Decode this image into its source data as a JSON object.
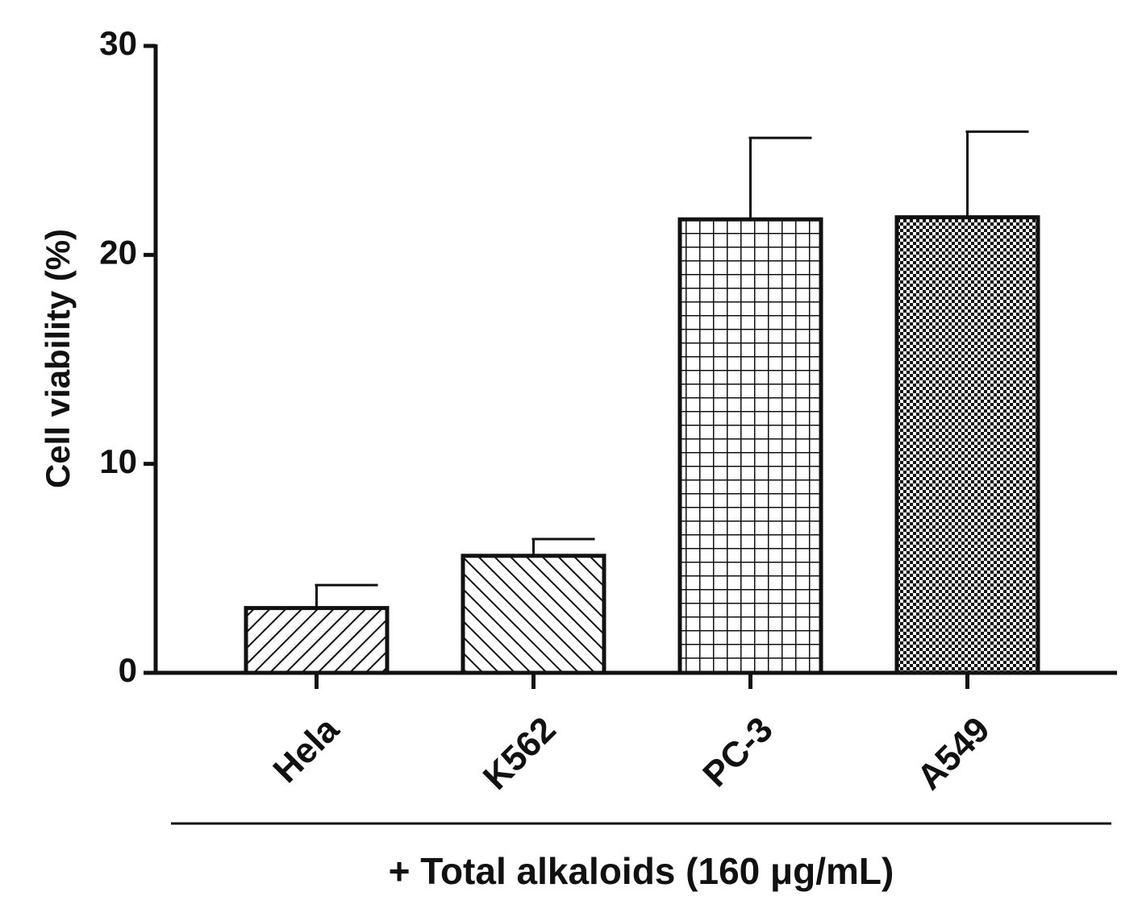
{
  "chart_data": {
    "type": "bar",
    "y_label": "Cell viability (%)",
    "x_group_label": "+ Total alkaloids (160 μg/mL)",
    "categories": [
      "Hela",
      "K562",
      "PC-3",
      "A549"
    ],
    "values": [
      3.1,
      5.6,
      21.7,
      21.8
    ],
    "errors": [
      1.1,
      0.8,
      3.9,
      4.1
    ],
    "patterns": [
      "diagonal-up",
      "diagonal-down",
      "grid",
      "checker"
    ],
    "color": "#111111",
    "ylim": [
      0,
      30
    ],
    "yticks": [
      0,
      10,
      20,
      30
    ]
  }
}
